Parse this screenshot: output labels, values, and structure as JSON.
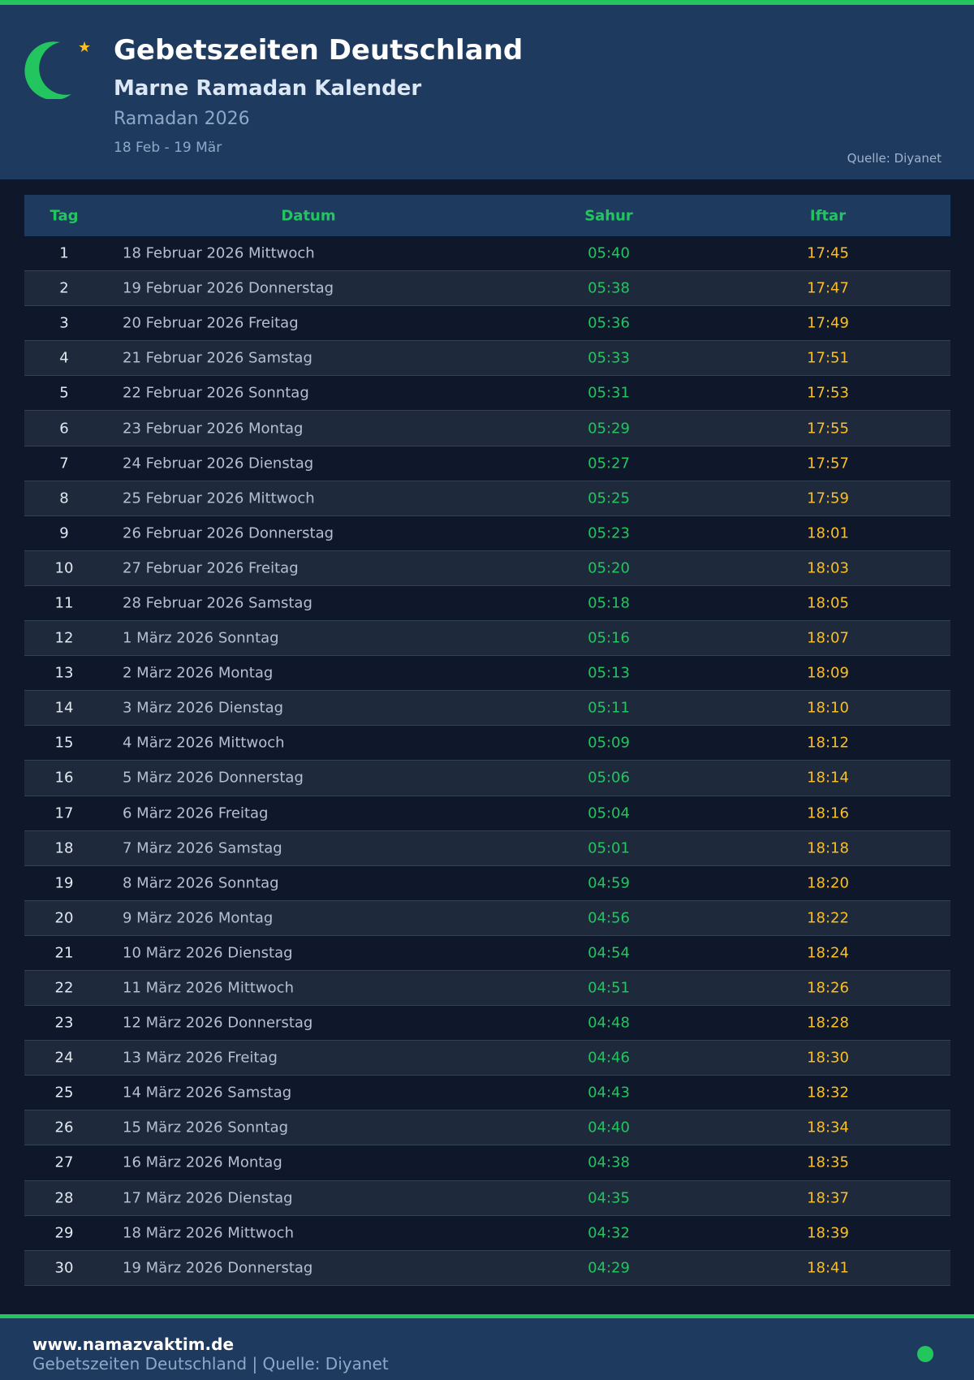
{
  "header": {
    "title": "Gebetszeiten Deutschland",
    "subtitle": "Marne Ramadan Kalender",
    "year": "Ramadan 2026",
    "range": "18 Feb - 19 Mär",
    "source": "Quelle: Diyanet"
  },
  "colors": {
    "accent": "#22c55e",
    "iftar": "#fbbf24",
    "header_bg": "#1e3a5f",
    "page_bg": "#0f172a"
  },
  "table": {
    "columns": [
      "Tag",
      "Datum",
      "Sahur",
      "Iftar"
    ],
    "rows": [
      [
        "1",
        "18 Februar 2026 Mittwoch",
        "05:40",
        "17:45"
      ],
      [
        "2",
        "19 Februar 2026 Donnerstag",
        "05:38",
        "17:47"
      ],
      [
        "3",
        "20 Februar 2026 Freitag",
        "05:36",
        "17:49"
      ],
      [
        "4",
        "21 Februar 2026 Samstag",
        "05:33",
        "17:51"
      ],
      [
        "5",
        "22 Februar 2026 Sonntag",
        "05:31",
        "17:53"
      ],
      [
        "6",
        "23 Februar 2026 Montag",
        "05:29",
        "17:55"
      ],
      [
        "7",
        "24 Februar 2026 Dienstag",
        "05:27",
        "17:57"
      ],
      [
        "8",
        "25 Februar 2026 Mittwoch",
        "05:25",
        "17:59"
      ],
      [
        "9",
        "26 Februar 2026 Donnerstag",
        "05:23",
        "18:01"
      ],
      [
        "10",
        "27 Februar 2026 Freitag",
        "05:20",
        "18:03"
      ],
      [
        "11",
        "28 Februar 2026 Samstag",
        "05:18",
        "18:05"
      ],
      [
        "12",
        "1 März 2026 Sonntag",
        "05:16",
        "18:07"
      ],
      [
        "13",
        "2 März 2026 Montag",
        "05:13",
        "18:09"
      ],
      [
        "14",
        "3 März 2026 Dienstag",
        "05:11",
        "18:10"
      ],
      [
        "15",
        "4 März 2026 Mittwoch",
        "05:09",
        "18:12"
      ],
      [
        "16",
        "5 März 2026 Donnerstag",
        "05:06",
        "18:14"
      ],
      [
        "17",
        "6 März 2026 Freitag",
        "05:04",
        "18:16"
      ],
      [
        "18",
        "7 März 2026 Samstag",
        "05:01",
        "18:18"
      ],
      [
        "19",
        "8 März 2026 Sonntag",
        "04:59",
        "18:20"
      ],
      [
        "20",
        "9 März 2026 Montag",
        "04:56",
        "18:22"
      ],
      [
        "21",
        "10 März 2026 Dienstag",
        "04:54",
        "18:24"
      ],
      [
        "22",
        "11 März 2026 Mittwoch",
        "04:51",
        "18:26"
      ],
      [
        "23",
        "12 März 2026 Donnerstag",
        "04:48",
        "18:28"
      ],
      [
        "24",
        "13 März 2026 Freitag",
        "04:46",
        "18:30"
      ],
      [
        "25",
        "14 März 2026 Samstag",
        "04:43",
        "18:32"
      ],
      [
        "26",
        "15 März 2026 Sonntag",
        "04:40",
        "18:34"
      ],
      [
        "27",
        "16 März 2026 Montag",
        "04:38",
        "18:35"
      ],
      [
        "28",
        "17 März 2026 Dienstag",
        "04:35",
        "18:37"
      ],
      [
        "29",
        "18 März 2026 Mittwoch",
        "04:32",
        "18:39"
      ],
      [
        "30",
        "19 März 2026 Donnerstag",
        "04:29",
        "18:41"
      ]
    ]
  },
  "footer": {
    "site": "www.namazvaktim.de",
    "text": "Gebetszeiten Deutschland | Quelle: Diyanet"
  }
}
